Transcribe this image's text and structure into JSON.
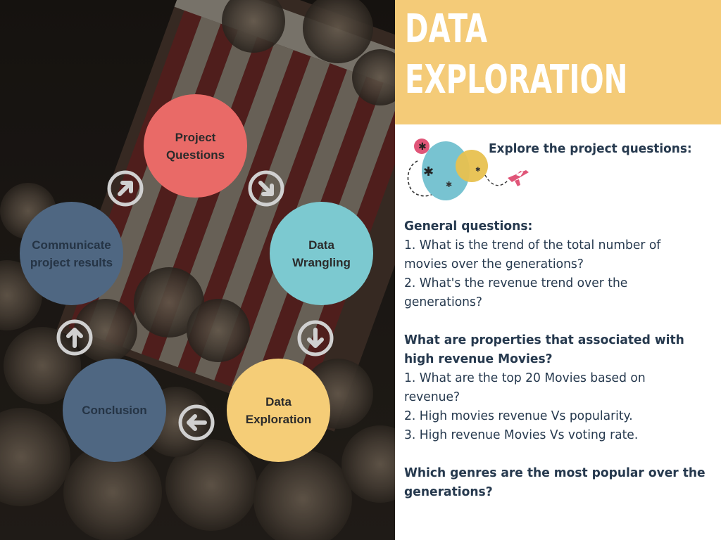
{
  "colors": {
    "header_band": "#f4cb78",
    "title_text": "#ffffff",
    "body_text": "#26394e",
    "node_red": "#e96a67",
    "node_teal": "#7cc9d0",
    "node_yellow": "#f5cd77",
    "node_slate": "#4f6782",
    "arrow_ring": "#cfcfcf"
  },
  "header": {
    "title_line1": "DATA",
    "title_line2": "EXPLORATION"
  },
  "cycle": {
    "nodes": [
      {
        "id": "project-questions",
        "line1": "Project",
        "line2": "Questions",
        "color": "#e96a67",
        "text_color": "#2b2b2b"
      },
      {
        "id": "data-wrangling",
        "line1": "Data",
        "line2": "Wrangling",
        "color": "#7cc9d0",
        "text_color": "#2b2b2b"
      },
      {
        "id": "data-exploration",
        "line1": "Data",
        "line2": "Exploration",
        "color": "#f5cd77",
        "text_color": "#2b2b2b"
      },
      {
        "id": "conclusion",
        "line1": "Conclusion",
        "line2": "",
        "color": "#4f6782",
        "text_color": "#253445"
      },
      {
        "id": "communicate-results",
        "line1": "Communicate",
        "line2": "project results",
        "color": "#4f6782",
        "text_color": "#253445"
      }
    ],
    "arrows": [
      {
        "name": "arrow-up-right-icon",
        "direction": "up-right"
      },
      {
        "name": "arrow-down-right-icon",
        "direction": "down-right"
      },
      {
        "name": "arrow-down-icon",
        "direction": "down"
      },
      {
        "name": "arrow-left-icon",
        "direction": "left"
      },
      {
        "name": "arrow-up-icon",
        "direction": "up"
      }
    ]
  },
  "content": {
    "explore_label": "Explore the project questions:",
    "lines": [
      {
        "text": "General questions:",
        "bold": true
      },
      {
        "text": "1. What is the trend of the total number of",
        "bold": false
      },
      {
        "text": "movies over the generations?",
        "bold": false
      },
      {
        "text": "2. What's the revenue trend over the",
        "bold": false
      },
      {
        "text": "generations?",
        "bold": false
      },
      {
        "text": "",
        "bold": false
      },
      {
        "text": "What are properties that associated with",
        "bold": true
      },
      {
        "text": "high revenue Movies?",
        "bold": true
      },
      {
        "text": "1. What are the top 20 Movies based on",
        "bold": false
      },
      {
        "text": "revenue?",
        "bold": false
      },
      {
        "text": "2. High movies revenue Vs popularity.",
        "bold": false
      },
      {
        "text": "3. High revenue Movies Vs voting rate.",
        "bold": false
      },
      {
        "text": "",
        "bold": false
      },
      {
        "text": "Which genres are the most popular over the",
        "bold": true
      },
      {
        "text": "generations?",
        "bold": true
      }
    ]
  }
}
